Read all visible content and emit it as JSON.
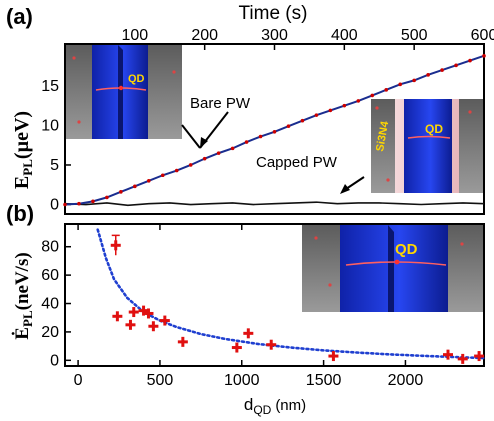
{
  "colors": {
    "bare_points": "#cc0000",
    "bare_line": "#1a2d8f",
    "capped": "#111111",
    "fit": "#1f3fd0",
    "rate_points": "#e01010",
    "pillar": "#1a35d8",
    "inset_bg": "#6f6f6f"
  },
  "chart_data": [
    {
      "type": "line",
      "panel_label": "(a)",
      "top_axis_label": "Time (s)",
      "ylabel": "E",
      "ylabel_sub": "PL",
      "ylabel_unit": "(µeV)",
      "xlim": [
        0,
        600
      ],
      "ylim": [
        -1.2,
        20.3
      ],
      "xticks": [
        "100",
        "200",
        "300",
        "400",
        "500",
        "600"
      ],
      "yticks": [
        "0",
        "5",
        "10",
        "15"
      ],
      "series": [
        {
          "name": "Bare PW",
          "style": "points+line",
          "x": [
            0,
            20,
            40,
            60,
            80,
            100,
            120,
            140,
            160,
            180,
            200,
            220,
            240,
            260,
            280,
            300,
            320,
            340,
            360,
            380,
            400,
            420,
            440,
            460,
            480,
            500,
            520,
            540,
            560,
            580,
            600
          ],
          "y": [
            0,
            0.1,
            0.4,
            0.9,
            1.6,
            2.3,
            3.0,
            3.7,
            4.3,
            5.0,
            5.8,
            6.5,
            7.1,
            7.9,
            8.6,
            9.2,
            9.9,
            10.6,
            11.3,
            11.9,
            12.5,
            13.1,
            13.8,
            14.5,
            15.2,
            15.7,
            16.4,
            17.0,
            17.6,
            18.2,
            18.8
          ]
        },
        {
          "name": "Capped PW",
          "style": "line",
          "x": [
            0,
            30,
            60,
            90,
            120,
            150,
            180,
            210,
            240,
            270,
            300,
            330,
            360,
            390,
            420,
            450,
            480,
            510,
            540,
            570,
            600
          ],
          "y": [
            0.1,
            0,
            0.2,
            -0.1,
            0.1,
            0.2,
            0,
            0.1,
            0.2,
            0,
            0.1,
            0.2,
            0.3,
            0.1,
            0.2,
            0.2,
            0.1,
            0,
            0.1,
            0.2,
            0.1
          ]
        }
      ],
      "annotations": [
        "Bare PW",
        "Capped PW"
      ],
      "insets": [
        {
          "labels": [
            "QD"
          ]
        },
        {
          "labels": [
            "Si3N4",
            "QD"
          ]
        }
      ]
    },
    {
      "type": "scatter",
      "panel_label": "(b)",
      "xlabel": "d",
      "xlabel_sub": "QD",
      "xlabel_unit": "(nm)",
      "ylabel": "Ė",
      "ylabel_sub": "PL",
      "ylabel_unit": "(neV/s)",
      "xlim": [
        -80,
        2480
      ],
      "ylim": [
        -4,
        96
      ],
      "xticks": [
        "0",
        "500",
        "1000",
        "1500",
        "2000"
      ],
      "yticks": [
        "0",
        "20",
        "40",
        "60",
        "80"
      ],
      "points": [
        {
          "x": 230,
          "y": 81,
          "yerr": 7
        },
        {
          "x": 240,
          "y": 31
        },
        {
          "x": 320,
          "y": 25
        },
        {
          "x": 340,
          "y": 34
        },
        {
          "x": 400,
          "y": 35
        },
        {
          "x": 430,
          "y": 33
        },
        {
          "x": 460,
          "y": 24
        },
        {
          "x": 530,
          "y": 28
        },
        {
          "x": 640,
          "y": 13
        },
        {
          "x": 970,
          "y": 9
        },
        {
          "x": 1040,
          "y": 19
        },
        {
          "x": 1180,
          "y": 11
        },
        {
          "x": 1560,
          "y": 3
        },
        {
          "x": 2260,
          "y": 4
        },
        {
          "x": 2350,
          "y": 1
        },
        {
          "x": 2450,
          "y": 3
        }
      ],
      "fit": {
        "style": "dotted",
        "x": [
          120,
          170,
          220,
          300,
          400,
          500,
          600,
          750,
          900,
          1100,
          1300,
          1500,
          1700,
          1900,
          2100,
          2300,
          2480
        ],
        "y": [
          92,
          72,
          57,
          44,
          34,
          28,
          23.5,
          18.5,
          15,
          11.5,
          9,
          7,
          5.5,
          4.2,
          3.2,
          2.3,
          1.6
        ]
      },
      "insets": [
        {
          "labels": [
            "QD"
          ]
        }
      ]
    }
  ]
}
